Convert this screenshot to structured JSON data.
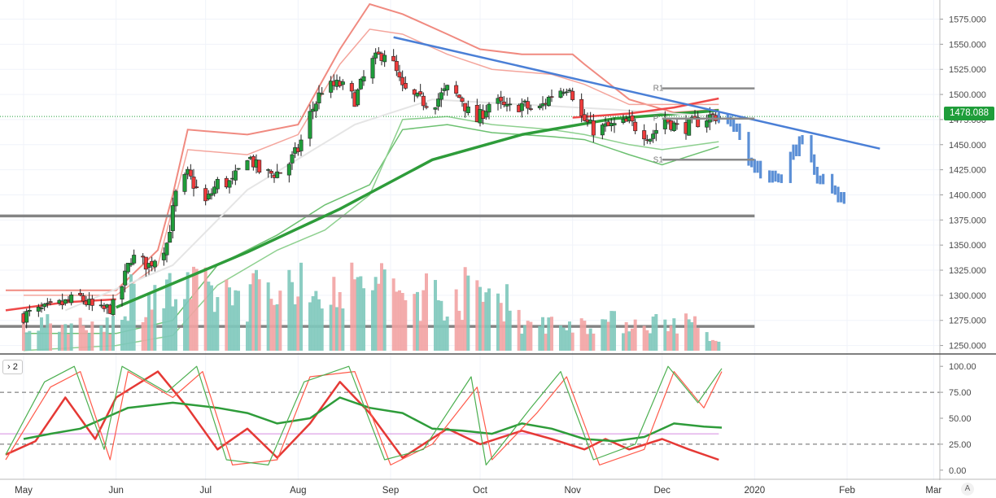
{
  "chart_data": [
    {
      "type": "candlestick",
      "pane": "price",
      "x_ticks": [
        "May",
        "Jun",
        "Jul",
        "Aug",
        "Sep",
        "Oct",
        "Nov",
        "Dec",
        "2020",
        "Feb",
        "Mar"
      ],
      "y_ticks": [
        1250,
        1275,
        1300,
        1325,
        1350,
        1375,
        1400,
        1425,
        1450,
        1475,
        1500,
        1525,
        1550,
        1575
      ],
      "y_tick_labels": [
        "1250.000",
        "1275.000",
        "1300.000",
        "1325.000",
        "1350.000",
        "1375.000",
        "1400.000",
        "1425.000",
        "1450.000",
        "1475.000",
        "1500.000",
        "1525.000",
        "1550.000",
        "1575.000"
      ],
      "ylim": [
        1244,
        1590
      ],
      "last_price": "1478.088",
      "price_path": [
        [
          "2019-05-01",
          1280
        ],
        [
          "2019-05-10",
          1287
        ],
        [
          "2019-05-20",
          1298
        ],
        [
          "2019-05-26",
          1283
        ],
        [
          "2019-06-01",
          1290
        ],
        [
          "2019-06-06",
          1338
        ],
        [
          "2019-06-12",
          1330
        ],
        [
          "2019-06-18",
          1352
        ],
        [
          "2019-06-21",
          1400
        ],
        [
          "2019-06-25",
          1420
        ],
        [
          "2019-07-01",
          1392
        ],
        [
          "2019-07-05",
          1412
        ],
        [
          "2019-07-10",
          1412
        ],
        [
          "2019-07-15",
          1440
        ],
        [
          "2019-07-20",
          1420
        ],
        [
          "2019-07-27",
          1423
        ],
        [
          "2019-08-01",
          1445
        ],
        [
          "2019-08-05",
          1480
        ],
        [
          "2019-08-09",
          1505
        ],
        [
          "2019-08-15",
          1510
        ],
        [
          "2019-08-20",
          1495
        ],
        [
          "2019-08-25",
          1530
        ],
        [
          "2019-08-31",
          1545
        ],
        [
          "2019-09-05",
          1505
        ],
        [
          "2019-09-10",
          1495
        ],
        [
          "2019-09-15",
          1490
        ],
        [
          "2019-09-20",
          1505
        ],
        [
          "2019-09-25",
          1495
        ],
        [
          "2019-09-29",
          1470
        ],
        [
          "2019-10-05",
          1495
        ],
        [
          "2019-10-10",
          1485
        ],
        [
          "2019-10-15",
          1490
        ],
        [
          "2019-10-20",
          1482
        ],
        [
          "2019-10-25",
          1500
        ],
        [
          "2019-10-31",
          1510
        ],
        [
          "2019-11-03",
          1480
        ],
        [
          "2019-11-08",
          1465
        ],
        [
          "2019-11-14",
          1468
        ],
        [
          "2019-11-20",
          1472
        ],
        [
          "2019-11-27",
          1458
        ],
        [
          "2019-12-02",
          1476
        ],
        [
          "2019-12-07",
          1465
        ],
        [
          "2019-12-12",
          1472
        ],
        [
          "2019-12-17",
          1478
        ],
        [
          "2019-12-21",
          1479
        ]
      ],
      "projection": [
        [
          "2019-12-20",
          1478
        ],
        [
          "2019-12-25",
          1472
        ],
        [
          "2019-12-30",
          1438
        ],
        [
          "2020-01-04",
          1422
        ],
        [
          "2020-01-09",
          1416
        ],
        [
          "2020-01-14",
          1445
        ],
        [
          "2020-01-18",
          1463
        ],
        [
          "2020-01-22",
          1420
        ],
        [
          "2020-01-26",
          1408
        ],
        [
          "2020-01-31",
          1400
        ]
      ],
      "projection_color": "#5b8fd6",
      "trendline": {
        "from": [
          "2019-09-02",
          1557
        ],
        "to": [
          "2020-02-12",
          1446
        ],
        "color": "#4a7fd6"
      },
      "horizontal_levels": [
        {
          "value": 1379,
          "from": "2019-04-25",
          "to": "2020-01-01",
          "color": "#848484"
        },
        {
          "value": 1269,
          "from": "2019-04-25",
          "to": "2020-01-01",
          "color": "#848484"
        }
      ],
      "last_price_line": {
        "value": 1478.088,
        "color": "#1f9d3a"
      },
      "pivots": [
        {
          "label": "R1",
          "value": 1506
        },
        {
          "label": "P",
          "value": 1476
        },
        {
          "label": "S1",
          "value": 1435
        }
      ],
      "moving_averages": [
        {
          "name": "slow-ma",
          "color": "#2e9c3a",
          "points": [
            [
              "2019-06-01",
              1288
            ],
            [
              "2019-07-15",
              1343
            ],
            [
              "2019-08-15",
              1386
            ],
            [
              "2019-09-15",
              1435
            ],
            [
              "2019-10-15",
              1460
            ],
            [
              "2019-11-15",
              1476
            ],
            [
              "2019-12-20",
              1484
            ]
          ]
        },
        {
          "name": "mid-ma",
          "color": "#e5e5e5",
          "points": [
            [
              "2019-05-15",
              1285
            ],
            [
              "2019-06-20",
              1330
            ],
            [
              "2019-07-15",
              1405
            ],
            [
              "2019-08-20",
              1470
            ],
            [
              "2019-09-15",
              1495
            ],
            [
              "2019-10-15",
              1490
            ],
            [
              "2019-11-15",
              1485
            ],
            [
              "2019-12-20",
              1478
            ]
          ]
        },
        {
          "name": "short-ma",
          "color": "#ef4a4a",
          "points": [
            [
              "2019-04-25",
              1285
            ],
            [
              "2019-05-15",
              1293
            ],
            [
              "2019-06-01",
              1296
            ]
          ]
        },
        {
          "name": "short-ma-dec",
          "color": "#ef4a4a",
          "points": [
            [
              "2019-11-01",
              1477
            ],
            [
              "2019-11-20",
              1481
            ],
            [
              "2019-12-05",
              1487
            ],
            [
              "2019-12-20",
              1496
            ]
          ]
        }
      ],
      "bands": {
        "upper_red": [
          [
            "2019-04-25",
            1305
          ],
          [
            "2019-05-15",
            1305
          ],
          [
            "2019-06-01",
            1305
          ],
          [
            "2019-06-15",
            1345
          ],
          [
            "2019-06-20",
            1400
          ],
          [
            "2019-06-25",
            1465
          ],
          [
            "2019-07-15",
            1460
          ],
          [
            "2019-08-01",
            1470
          ],
          [
            "2019-08-15",
            1545
          ],
          [
            "2019-08-25",
            1590
          ],
          [
            "2019-09-05",
            1580
          ],
          [
            "2019-09-20",
            1560
          ],
          [
            "2019-10-01",
            1545
          ],
          [
            "2019-10-15",
            1540
          ],
          [
            "2019-11-01",
            1540
          ],
          [
            "2019-11-05",
            1530
          ],
          [
            "2019-11-20",
            1495
          ],
          [
            "2019-12-05",
            1482
          ],
          [
            "2019-12-20",
            1485
          ]
        ],
        "upper_red_2": [
          [
            "2019-05-01",
            1300
          ],
          [
            "2019-06-01",
            1300
          ],
          [
            "2019-06-15",
            1330
          ],
          [
            "2019-06-25",
            1445
          ],
          [
            "2019-07-15",
            1440
          ],
          [
            "2019-08-01",
            1460
          ],
          [
            "2019-08-15",
            1530
          ],
          [
            "2019-08-25",
            1565
          ],
          [
            "2019-09-05",
            1560
          ],
          [
            "2019-09-20",
            1540
          ],
          [
            "2019-10-05",
            1525
          ],
          [
            "2019-10-25",
            1520
          ],
          [
            "2019-11-05",
            1510
          ],
          [
            "2019-11-20",
            1490
          ],
          [
            "2019-12-20",
            1490
          ]
        ],
        "lower_green": [
          [
            "2019-05-01",
            1262
          ],
          [
            "2019-06-01",
            1262
          ],
          [
            "2019-06-20",
            1275
          ],
          [
            "2019-07-05",
            1330
          ],
          [
            "2019-07-25",
            1360
          ],
          [
            "2019-08-10",
            1390
          ],
          [
            "2019-08-25",
            1410
          ],
          [
            "2019-09-05",
            1465
          ],
          [
            "2019-09-20",
            1470
          ],
          [
            "2019-10-05",
            1462
          ],
          [
            "2019-10-25",
            1458
          ],
          [
            "2019-11-05",
            1455
          ],
          [
            "2019-11-20",
            1440
          ],
          [
            "2019-12-01",
            1430
          ],
          [
            "2019-12-20",
            1448
          ]
        ],
        "lower_green_2": [
          [
            "2019-05-01",
            1245
          ],
          [
            "2019-06-01",
            1250
          ],
          [
            "2019-06-20",
            1260
          ],
          [
            "2019-07-05",
            1310
          ],
          [
            "2019-07-25",
            1345
          ],
          [
            "2019-08-10",
            1365
          ],
          [
            "2019-08-25",
            1400
          ],
          [
            "2019-09-05",
            1475
          ],
          [
            "2019-09-20",
            1478
          ],
          [
            "2019-10-05",
            1470
          ],
          [
            "2019-10-25",
            1465
          ],
          [
            "2019-11-05",
            1460
          ],
          [
            "2019-11-20",
            1450
          ],
          [
            "2019-12-01",
            1445
          ],
          [
            "2019-12-20",
            1453
          ]
        ]
      },
      "volume_bars": "present",
      "up_color": "#1f9d3a",
      "down_color": "#ef3b3b",
      "volume_up_color": "#7ec8bb",
      "volume_down_color": "#f2a3a3"
    },
    {
      "type": "line",
      "pane": "oscillator",
      "pane_label": "2",
      "y_ticks": [
        0,
        25,
        50,
        75,
        100
      ],
      "y_tick_labels": [
        "0.00",
        "25.00",
        "50.00",
        "75.00",
        "100.00"
      ],
      "ylim": [
        -8,
        108
      ],
      "dashed_levels": [
        25,
        75
      ],
      "purple_level": 35,
      "series": [
        {
          "color": "#e53935",
          "values": [
            [
              "2019-04-25",
              15
            ],
            [
              "2019-05-05",
              28
            ],
            [
              "2019-05-15",
              70
            ],
            [
              "2019-05-25",
              30
            ],
            [
              "2019-06-01",
              70
            ],
            [
              "2019-06-15",
              95
            ],
            [
              "2019-06-25",
              60
            ],
            [
              "2019-07-05",
              20
            ],
            [
              "2019-07-15",
              40
            ],
            [
              "2019-07-25",
              12
            ],
            [
              "2019-08-05",
              45
            ],
            [
              "2019-08-15",
              85
            ],
            [
              "2019-08-25",
              55
            ],
            [
              "2019-09-05",
              12
            ],
            [
              "2019-09-20",
              40
            ],
            [
              "2019-10-01",
              25
            ],
            [
              "2019-10-15",
              38
            ],
            [
              "2019-10-25",
              30
            ],
            [
              "2019-11-05",
              20
            ],
            [
              "2019-11-12",
              30
            ],
            [
              "2019-11-20",
              20
            ],
            [
              "2019-12-01",
              30
            ],
            [
              "2019-12-10",
              20
            ],
            [
              "2019-12-20",
              10
            ]
          ]
        },
        {
          "color": "#2e9c3a",
          "values": [
            [
              "2019-05-01",
              30
            ],
            [
              "2019-05-10",
              35
            ],
            [
              "2019-05-20",
              40
            ],
            [
              "2019-06-05",
              60
            ],
            [
              "2019-06-20",
              65
            ],
            [
              "2019-07-05",
              60
            ],
            [
              "2019-07-15",
              55
            ],
            [
              "2019-07-25",
              45
            ],
            [
              "2019-08-05",
              50
            ],
            [
              "2019-08-15",
              70
            ],
            [
              "2019-08-25",
              60
            ],
            [
              "2019-09-05",
              55
            ],
            [
              "2019-09-15",
              40
            ],
            [
              "2019-09-25",
              38
            ],
            [
              "2019-10-05",
              35
            ],
            [
              "2019-10-15",
              45
            ],
            [
              "2019-10-25",
              40
            ],
            [
              "2019-11-05",
              30
            ],
            [
              "2019-11-15",
              28
            ],
            [
              "2019-11-25",
              32
            ],
            [
              "2019-12-05",
              45
            ],
            [
              "2019-12-15",
              42
            ],
            [
              "2019-12-21",
              41
            ]
          ]
        },
        {
          "color": "#ff5a4a",
          "values": [
            [
              "2019-04-25",
              10
            ],
            [
              "2019-05-10",
              80
            ],
            [
              "2019-05-20",
              95
            ],
            [
              "2019-05-30",
              10
            ],
            [
              "2019-06-05",
              95
            ],
            [
              "2019-06-20",
              70
            ],
            [
              "2019-06-30",
              95
            ],
            [
              "2019-07-10",
              5
            ],
            [
              "2019-07-25",
              10
            ],
            [
              "2019-08-05",
              90
            ],
            [
              "2019-08-20",
              95
            ],
            [
              "2019-09-01",
              5
            ],
            [
              "2019-09-15",
              25
            ],
            [
              "2019-09-30",
              80
            ],
            [
              "2019-10-05",
              10
            ],
            [
              "2019-10-20",
              55
            ],
            [
              "2019-10-30",
              90
            ],
            [
              "2019-11-10",
              5
            ],
            [
              "2019-11-25",
              20
            ],
            [
              "2019-12-05",
              95
            ],
            [
              "2019-12-15",
              60
            ],
            [
              "2019-12-21",
              95
            ]
          ]
        },
        {
          "color": "#4caf50",
          "values": [
            [
              "2019-04-25",
              15
            ],
            [
              "2019-05-08",
              85
            ],
            [
              "2019-05-18",
              100
            ],
            [
              "2019-05-28",
              20
            ],
            [
              "2019-06-03",
              100
            ],
            [
              "2019-06-18",
              75
            ],
            [
              "2019-06-28",
              100
            ],
            [
              "2019-07-08",
              10
            ],
            [
              "2019-07-22",
              5
            ],
            [
              "2019-08-03",
              85
            ],
            [
              "2019-08-18",
              100
            ],
            [
              "2019-08-30",
              10
            ],
            [
              "2019-09-12",
              20
            ],
            [
              "2019-09-28",
              90
            ],
            [
              "2019-10-03",
              5
            ],
            [
              "2019-10-18",
              60
            ],
            [
              "2019-10-28",
              95
            ],
            [
              "2019-11-08",
              10
            ],
            [
              "2019-11-22",
              25
            ],
            [
              "2019-12-03",
              100
            ],
            [
              "2019-12-13",
              65
            ],
            [
              "2019-12-21",
              98
            ]
          ]
        }
      ]
    }
  ],
  "ui": {
    "pane_badge": "› 2",
    "auto_button": "A"
  }
}
